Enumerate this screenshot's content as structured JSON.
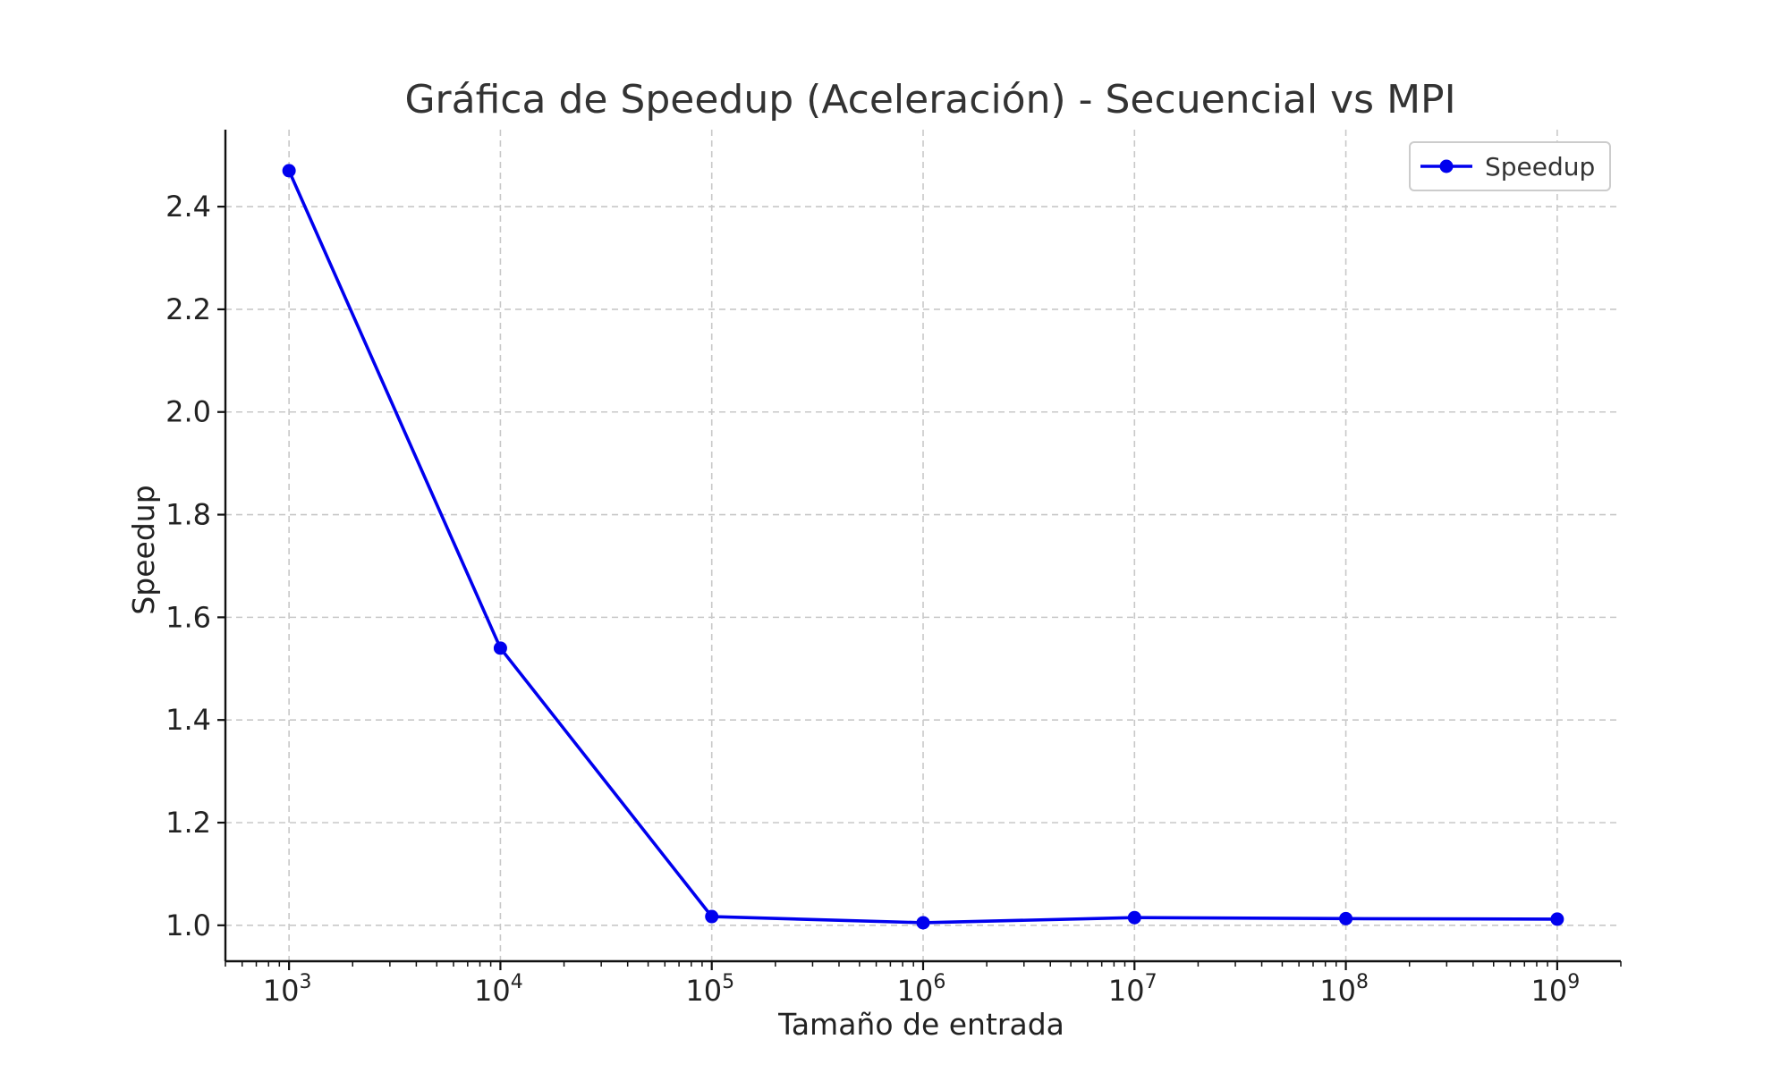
{
  "chart_data": {
    "type": "line",
    "title": "Gráfica de Speedup (Aceleración) - Secuencial vs MPI",
    "xlabel": "Tamaño de entrada",
    "ylabel": "Speedup",
    "xscale": "log",
    "xlim": [
      500,
      2000000000
    ],
    "ylim": [
      0.93,
      2.55
    ],
    "x_ticks": [
      {
        "value": 1000,
        "base": "10",
        "exp": "3"
      },
      {
        "value": 10000,
        "base": "10",
        "exp": "4"
      },
      {
        "value": 100000,
        "base": "10",
        "exp": "5"
      },
      {
        "value": 1000000,
        "base": "10",
        "exp": "6"
      },
      {
        "value": 10000000,
        "base": "10",
        "exp": "7"
      },
      {
        "value": 100000000,
        "base": "10",
        "exp": "8"
      },
      {
        "value": 1000000000,
        "base": "10",
        "exp": "9"
      }
    ],
    "y_ticks": [
      1.0,
      1.2,
      1.4,
      1.6,
      1.8,
      2.0,
      2.2,
      2.4
    ],
    "y_tick_labels": [
      "1.0",
      "1.2",
      "1.4",
      "1.6",
      "1.8",
      "2.0",
      "2.2",
      "2.4"
    ],
    "grid": true,
    "legend": {
      "position": "top-right"
    },
    "series": [
      {
        "name": "Speedup",
        "color": "#0000ee",
        "marker": "circle",
        "x": [
          1000,
          10000,
          100000,
          1000000,
          10000000,
          100000000,
          1000000000
        ],
        "y": [
          2.47,
          1.54,
          1.017,
          1.005,
          1.015,
          1.013,
          1.012
        ]
      }
    ]
  }
}
